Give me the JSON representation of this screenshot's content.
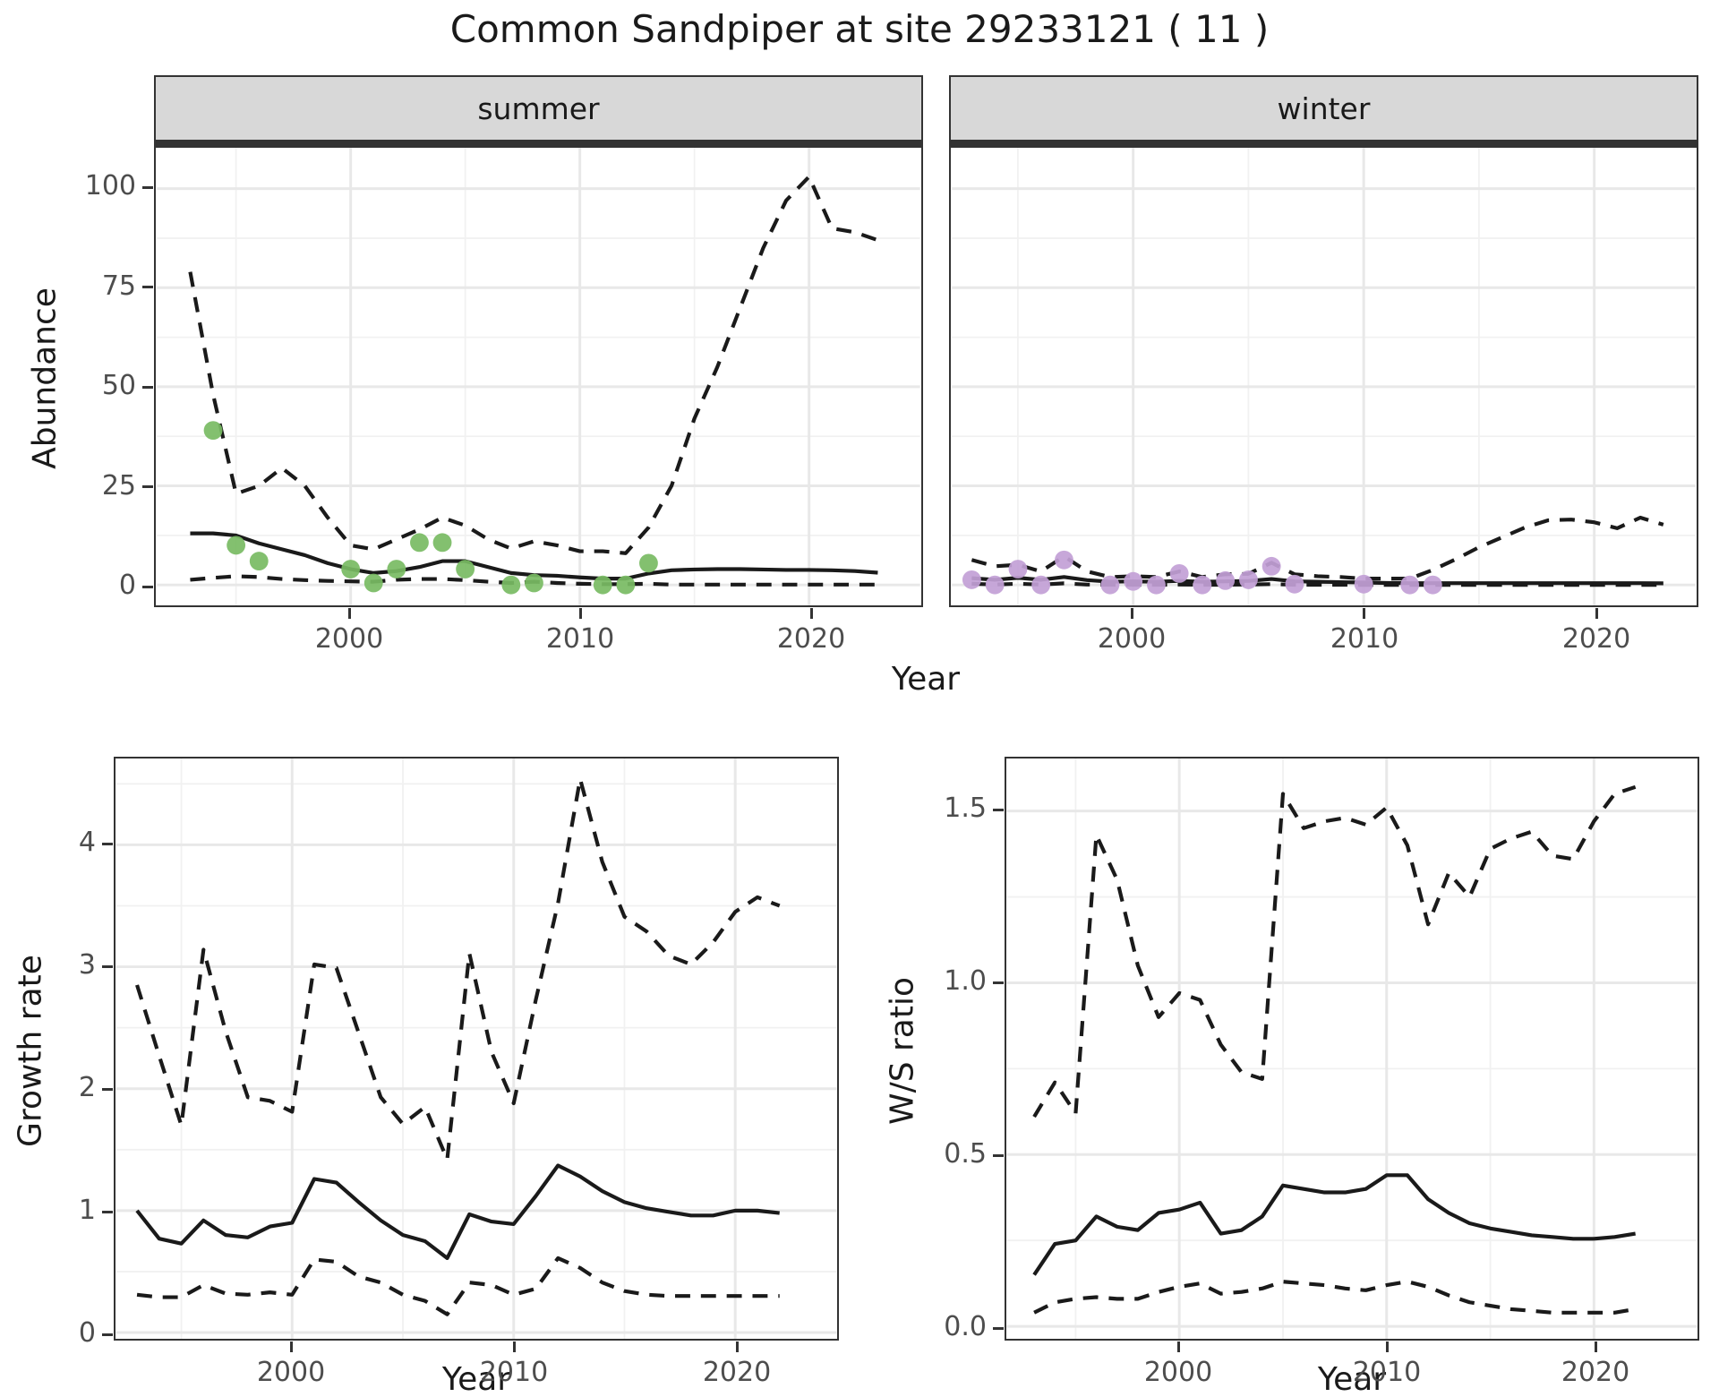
{
  "title": "Common Sandpiper at site 29233121 ( 11 )",
  "colors": {
    "summer_point": "#78BB63",
    "winter_point": "#C2A0D6",
    "line": "#1A1A1A",
    "strip_bg": "#D8D8D8",
    "panel_border": "#333333",
    "grid_major": "#E8E8E8",
    "grid_minor": "#F1F1F1",
    "tick_text": "#4D4D4D",
    "title_text": "#1A1A1A"
  },
  "chart_data": [
    {
      "id": "summer",
      "type": "line",
      "facet_label": "summer",
      "xlabel": "Year",
      "ylabel": "Abundance",
      "xlim": [
        1993,
        2023
      ],
      "ylim": [
        -5,
        110
      ],
      "grid": true,
      "legend": "none",
      "xticks": {
        "values": [
          2000,
          2010,
          2020
        ],
        "labels": [
          "2000",
          "2010",
          "2020"
        ]
      },
      "yticks": {
        "values": [
          0,
          25,
          50,
          75,
          100
        ],
        "labels": [
          "0",
          "25",
          "50",
          "75",
          "100"
        ],
        "show_labels": true
      },
      "series": [
        {
          "name": "upper_95ci",
          "style": "dashed",
          "x": [
            1993,
            1994,
            1995,
            1996,
            1997,
            1998,
            1999,
            2000,
            2001,
            2002,
            2003,
            2004,
            2005,
            2006,
            2007,
            2008,
            2009,
            2010,
            2011,
            2012,
            2013,
            2014,
            2015,
            2016,
            2017,
            2018,
            2019,
            2020,
            2021,
            2022,
            2023
          ],
          "y": [
            79,
            48,
            23,
            25,
            29.5,
            25,
            17,
            10,
            9,
            11.5,
            14,
            17,
            15,
            11.5,
            9.2,
            11,
            10,
            8.5,
            8.5,
            8,
            14.5,
            25,
            42,
            55,
            70,
            85,
            97,
            103,
            90,
            89,
            87
          ]
        },
        {
          "name": "median_fit",
          "style": "solid",
          "x": [
            1993,
            1994,
            1995,
            1996,
            1997,
            1998,
            1999,
            2000,
            2001,
            2002,
            2003,
            2004,
            2005,
            2006,
            2007,
            2008,
            2009,
            2010,
            2011,
            2012,
            2013,
            2014,
            2015,
            2016,
            2017,
            2018,
            2019,
            2020,
            2021,
            2022,
            2023
          ],
          "y": [
            13,
            13,
            12.5,
            10.5,
            9,
            7.5,
            5.5,
            4,
            3,
            3.5,
            4.5,
            6,
            6,
            4.5,
            3,
            2.5,
            2.3,
            1.9,
            1.6,
            1.6,
            2.9,
            3.7,
            3.9,
            4,
            4,
            3.9,
            3.8,
            3.8,
            3.7,
            3.5,
            3.1
          ]
        },
        {
          "name": "lower_95ci",
          "style": "dashed",
          "x": [
            1993,
            1994,
            1995,
            1996,
            1997,
            1998,
            1999,
            2000,
            2001,
            2002,
            2003,
            2004,
            2005,
            2006,
            2007,
            2008,
            2009,
            2010,
            2011,
            2012,
            2013,
            2014,
            2015,
            2016,
            2017,
            2018,
            2019,
            2020,
            2021,
            2022,
            2023
          ],
          "y": [
            1.3,
            1.8,
            2.2,
            2,
            1.5,
            1.2,
            1,
            0.9,
            0.8,
            1.3,
            1.5,
            1.5,
            1.2,
            0.8,
            0.5,
            0.8,
            0.5,
            0.3,
            0.2,
            0.2,
            0.3,
            0.1,
            0.1,
            0.1,
            0.1,
            0.1,
            0.1,
            0.1,
            0.1,
            0.1,
            0.1
          ]
        },
        {
          "name": "observed_counts",
          "style": "points",
          "color_key": "summer_point",
          "x": [
            1994,
            1995,
            1996,
            2000,
            2001,
            2002,
            2003,
            2004,
            2005,
            2007,
            2008,
            2011,
            2012,
            2013
          ],
          "y": [
            39,
            10,
            6,
            4,
            0.5,
            4,
            10.7,
            10.7,
            4,
            0,
            0.5,
            0,
            0,
            5.5
          ]
        }
      ]
    },
    {
      "id": "winter",
      "type": "line",
      "facet_label": "winter",
      "xlabel": "Year",
      "ylabel": "Abundance",
      "xlim": [
        1993,
        2023
      ],
      "ylim": [
        -5,
        110
      ],
      "grid": true,
      "legend": "none",
      "xticks": {
        "values": [
          2000,
          2010,
          2020
        ],
        "labels": [
          "2000",
          "2010",
          "2020"
        ]
      },
      "yticks": {
        "values": [
          0,
          25,
          50,
          75,
          100
        ],
        "labels": [
          "0",
          "25",
          "50",
          "75",
          "100"
        ],
        "show_labels": false
      },
      "series": [
        {
          "name": "upper_95ci",
          "style": "dashed",
          "x": [
            1993,
            1994,
            1995,
            1996,
            1997,
            1998,
            1999,
            2000,
            2001,
            2002,
            2003,
            2004,
            2005,
            2006,
            2007,
            2008,
            2009,
            2010,
            2011,
            2012,
            2013,
            2014,
            2015,
            2016,
            2017,
            2018,
            2019,
            2020,
            2021,
            2022,
            2023
          ],
          "y": [
            6.3,
            4.7,
            5.1,
            3.4,
            7.2,
            3.4,
            2,
            2.2,
            2,
            3.4,
            2,
            2.7,
            2.8,
            5.6,
            2.7,
            2.2,
            2,
            1.6,
            1.6,
            1.6,
            3.8,
            6.5,
            9.5,
            12,
            14.5,
            16.3,
            16.5,
            15.8,
            14.3,
            17,
            15.2
          ]
        },
        {
          "name": "median_fit",
          "style": "solid",
          "x": [
            1993,
            1994,
            1995,
            1996,
            1997,
            1998,
            1999,
            2000,
            2001,
            2002,
            2003,
            2004,
            2005,
            2006,
            2007,
            2008,
            2009,
            2010,
            2011,
            2012,
            2013,
            2014,
            2015,
            2016,
            2017,
            2018,
            2019,
            2020,
            2021,
            2022,
            2023
          ],
          "y": [
            1.7,
            1.3,
            1.8,
            1.3,
            2,
            1.2,
            0.8,
            0.9,
            0.8,
            1,
            0.8,
            0.9,
            1,
            1.5,
            0.9,
            0.8,
            0.7,
            0.6,
            0.5,
            0.45,
            0.45,
            0.45,
            0.45,
            0.45,
            0.45,
            0.45,
            0.45,
            0.45,
            0.45,
            0.45,
            0.4
          ]
        },
        {
          "name": "lower_95ci",
          "style": "dashed",
          "x": [
            1993,
            1994,
            1995,
            1996,
            1997,
            1998,
            1999,
            2000,
            2001,
            2002,
            2003,
            2004,
            2005,
            2006,
            2007,
            2008,
            2009,
            2010,
            2011,
            2012,
            2013,
            2014,
            2015,
            2016,
            2017,
            2018,
            2019,
            2020,
            2021,
            2022,
            2023
          ],
          "y": [
            0.3,
            0.1,
            0.3,
            0.1,
            0.4,
            0.1,
            0.05,
            0.05,
            0.05,
            0.1,
            0.05,
            0.05,
            0.1,
            0.2,
            0.05,
            0.05,
            0.05,
            0,
            0,
            0,
            0,
            0,
            0,
            0,
            0,
            0,
            0,
            0,
            0,
            0,
            0
          ]
        },
        {
          "name": "observed_counts",
          "style": "points",
          "color_key": "winter_point",
          "x": [
            1993,
            1994,
            1995,
            1996,
            1997,
            1999,
            2000,
            2001,
            2002,
            2003,
            2004,
            2005,
            2006,
            2007,
            2010,
            2012,
            2013
          ],
          "y": [
            1.3,
            0,
            4,
            0,
            6.3,
            0,
            0.9,
            0,
            2.9,
            0,
            1.1,
            1.3,
            4.7,
            0.2,
            0.2,
            0,
            0
          ]
        }
      ]
    },
    {
      "id": "growth",
      "type": "line",
      "facet_label": "",
      "xlabel": "Year",
      "ylabel": "Growth rate",
      "xlim": [
        1993,
        2022
      ],
      "ylim": [
        0,
        4.7
      ],
      "grid": true,
      "legend": "none",
      "xticks": {
        "values": [
          2000,
          2010,
          2020
        ],
        "labels": [
          "2000",
          "2010",
          "2020"
        ]
      },
      "yticks": {
        "values": [
          0,
          1,
          2,
          3,
          4
        ],
        "labels": [
          "0",
          "1",
          "2",
          "3",
          "4"
        ],
        "show_labels": true
      },
      "series": [
        {
          "name": "upper_95ci",
          "style": "dashed",
          "x": [
            1993,
            1994,
            1995,
            1996,
            1997,
            1998,
            1999,
            2000,
            2001,
            2002,
            2003,
            2004,
            2005,
            2006,
            2007,
            2008,
            2009,
            2010,
            2011,
            2012,
            2013,
            2014,
            2015,
            2016,
            2017,
            2018,
            2019,
            2020,
            2021,
            2022
          ],
          "y": [
            2.85,
            2.27,
            1.7,
            3.14,
            2.47,
            1.93,
            1.9,
            1.81,
            3.02,
            2.99,
            2.46,
            1.93,
            1.71,
            1.85,
            1.42,
            3.11,
            2.3,
            1.88,
            2.73,
            3.52,
            4.54,
            3.86,
            3.41,
            3.29,
            3.09,
            3.02,
            3.2,
            3.45,
            3.57,
            3.5
          ]
        },
        {
          "name": "median_fit",
          "style": "solid",
          "x": [
            1993,
            1994,
            1995,
            1996,
            1997,
            1998,
            1999,
            2000,
            2001,
            2002,
            2003,
            2004,
            2005,
            2006,
            2007,
            2008,
            2009,
            2010,
            2011,
            2012,
            2013,
            2014,
            2015,
            2016,
            2017,
            2018,
            2019,
            2020,
            2021,
            2022
          ],
          "y": [
            1.0,
            0.77,
            0.73,
            0.92,
            0.8,
            0.78,
            0.87,
            0.9,
            1.26,
            1.23,
            1.07,
            0.92,
            0.8,
            0.75,
            0.61,
            0.97,
            0.91,
            0.89,
            1.12,
            1.37,
            1.28,
            1.16,
            1.07,
            1.02,
            0.99,
            0.96,
            0.96,
            1.0,
            1.0,
            0.98
          ]
        },
        {
          "name": "lower_95ci",
          "style": "dashed",
          "x": [
            1993,
            1994,
            1995,
            1996,
            1997,
            1998,
            1999,
            2000,
            2001,
            2002,
            2003,
            2004,
            2005,
            2006,
            2007,
            2008,
            2009,
            2010,
            2011,
            2012,
            2013,
            2014,
            2015,
            2016,
            2017,
            2018,
            2019,
            2020,
            2021,
            2022
          ],
          "y": [
            0.31,
            0.29,
            0.29,
            0.39,
            0.32,
            0.31,
            0.33,
            0.31,
            0.6,
            0.58,
            0.46,
            0.41,
            0.31,
            0.26,
            0.15,
            0.41,
            0.39,
            0.31,
            0.36,
            0.61,
            0.53,
            0.41,
            0.34,
            0.31,
            0.3,
            0.3,
            0.3,
            0.3,
            0.3,
            0.3
          ]
        }
      ]
    },
    {
      "id": "ws",
      "type": "line",
      "facet_label": "",
      "xlabel": "Year",
      "ylabel": "W/S ratio",
      "xlim": [
        1993,
        2022
      ],
      "ylim": [
        -0.05,
        1.65
      ],
      "grid": true,
      "legend": "none",
      "xticks": {
        "values": [
          2000,
          2010,
          2020
        ],
        "labels": [
          "2000",
          "2010",
          "2020"
        ]
      },
      "yticks": {
        "values": [
          0,
          0.5,
          1,
          1.5
        ],
        "labels": [
          "0.0",
          "0.5",
          "1.0",
          "1.5"
        ],
        "show_labels": true
      },
      "series": [
        {
          "name": "upper_95ci",
          "style": "dashed",
          "x": [
            1993,
            1994,
            1995,
            1996,
            1997,
            1998,
            1999,
            2000,
            2001,
            2002,
            2003,
            2004,
            2005,
            2006,
            2007,
            2008,
            2009,
            2010,
            2011,
            2012,
            2013,
            2014,
            2015,
            2016,
            2017,
            2018,
            2019,
            2020,
            2021,
            2022
          ],
          "y": [
            0.61,
            0.71,
            0.62,
            1.43,
            1.3,
            1.05,
            0.9,
            0.97,
            0.95,
            0.82,
            0.74,
            0.72,
            1.55,
            1.45,
            1.47,
            1.48,
            1.46,
            1.51,
            1.4,
            1.17,
            1.32,
            1.25,
            1.39,
            1.42,
            1.44,
            1.37,
            1.36,
            1.47,
            1.55,
            1.57
          ]
        },
        {
          "name": "median_fit",
          "style": "solid",
          "x": [
            1993,
            1994,
            1995,
            1996,
            1997,
            1998,
            1999,
            2000,
            2001,
            2002,
            2003,
            2004,
            2005,
            2006,
            2007,
            2008,
            2009,
            2010,
            2011,
            2012,
            2013,
            2014,
            2015,
            2016,
            2017,
            2018,
            2019,
            2020,
            2021,
            2022
          ],
          "y": [
            0.15,
            0.24,
            0.25,
            0.32,
            0.29,
            0.28,
            0.33,
            0.34,
            0.36,
            0.27,
            0.28,
            0.32,
            0.41,
            0.4,
            0.39,
            0.39,
            0.4,
            0.44,
            0.44,
            0.37,
            0.33,
            0.3,
            0.285,
            0.275,
            0.265,
            0.26,
            0.255,
            0.255,
            0.26,
            0.27
          ]
        },
        {
          "name": "lower_95ci",
          "style": "dashed",
          "x": [
            1993,
            1994,
            1995,
            1996,
            1997,
            1998,
            1999,
            2000,
            2001,
            2002,
            2003,
            2004,
            2005,
            2006,
            2007,
            2008,
            2009,
            2010,
            2011,
            2012,
            2013,
            2014,
            2015,
            2016,
            2017,
            2018,
            2019,
            2020,
            2021,
            2022
          ],
          "y": [
            0.04,
            0.07,
            0.08,
            0.085,
            0.08,
            0.08,
            0.1,
            0.115,
            0.125,
            0.095,
            0.1,
            0.11,
            0.13,
            0.125,
            0.12,
            0.11,
            0.105,
            0.12,
            0.13,
            0.115,
            0.09,
            0.07,
            0.06,
            0.05,
            0.045,
            0.04,
            0.04,
            0.04,
            0.04,
            0.05
          ]
        }
      ]
    }
  ]
}
